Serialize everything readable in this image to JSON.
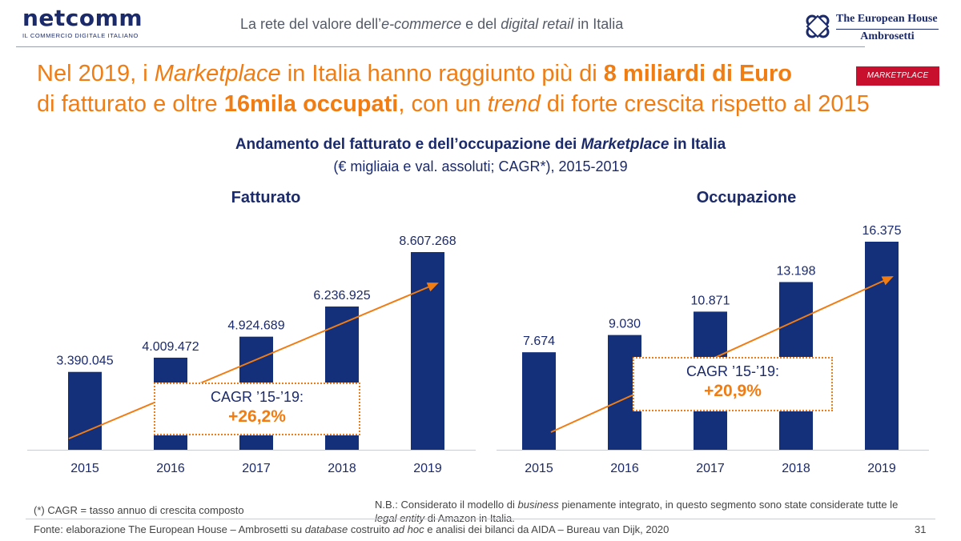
{
  "header": {
    "logo_left_word": "netcomm",
    "logo_left_tag": "IL COMMERCIO DIGITALE ITALIANO",
    "tagline_pre": "La rete del valore dell’",
    "tagline_em1": "e-commerce",
    "tagline_mid": " e del ",
    "tagline_em2": "digital retail",
    "tagline_post": " in Italia",
    "logo_right_line1": "The European House",
    "logo_right_line2": "Ambrosetti"
  },
  "headline": {
    "l1_a": "Nel 2019, i ",
    "l1_em": "Marketplace",
    "l1_b": " in Italia hanno raggiunto più di ",
    "l1_bold": "8 miliardi di Euro",
    "l2_a": "di fatturato e oltre ",
    "l2_bold": "16mila occupati",
    "l2_b": ", con un ",
    "l2_em": "trend",
    "l2_c": " di forte crescita rispetto al 2015",
    "badge": "MARKETPLACE"
  },
  "chart_title_pre": "Andamento del fatturato e dell’occupazione dei ",
  "chart_title_em": "Marketplace",
  "chart_title_post": " in Italia",
  "chart_subtitle": "(€ migliaia e val. assoluti; CAGR*), 2015-2019",
  "chart_data": [
    {
      "type": "bar",
      "title": "Fatturato",
      "categories": [
        "2015",
        "2016",
        "2017",
        "2018",
        "2019"
      ],
      "values": [
        3390045,
        4009472,
        4924689,
        6236925,
        8607268
      ],
      "labels": [
        "3.390.045",
        "4.009.472",
        "4.924.689",
        "6.236.925",
        "8.607.268"
      ],
      "cagr_label": "CAGR ’15-’19:",
      "cagr_value": "+26,2%",
      "color": "#14307a",
      "trend_color": "#f07c14"
    },
    {
      "type": "bar",
      "title": "Occupazione",
      "categories": [
        "2015",
        "2016",
        "2017",
        "2018",
        "2019"
      ],
      "values": [
        7674,
        9030,
        10871,
        13198,
        16375
      ],
      "labels": [
        "7.674",
        "9.030",
        "10.871",
        "13.198",
        "16.375"
      ],
      "cagr_label": "CAGR ’15-’19:",
      "cagr_value": "+20,9%",
      "color": "#14307a",
      "trend_color": "#f07c14"
    }
  ],
  "footer": {
    "cagr_note": "(*) CAGR = tasso annuo di crescita composto",
    "nb_a": "N.B.: Considerato il modello di ",
    "nb_em1": "business",
    "nb_b": " pienamente integrato, in questo segmento sono state considerate tutte le ",
    "nb_em2": "legal entity",
    "nb_c": " di Amazon in Italia.",
    "source_a": "Fonte: elaborazione The European House – Ambrosetti su ",
    "source_em1": "database",
    "source_b": " costruito ",
    "source_em2": "ad hoc",
    "source_c": " e analisi dei bilanci da AIDA – Bureau van Dijk, 2020",
    "page_number": "31"
  }
}
